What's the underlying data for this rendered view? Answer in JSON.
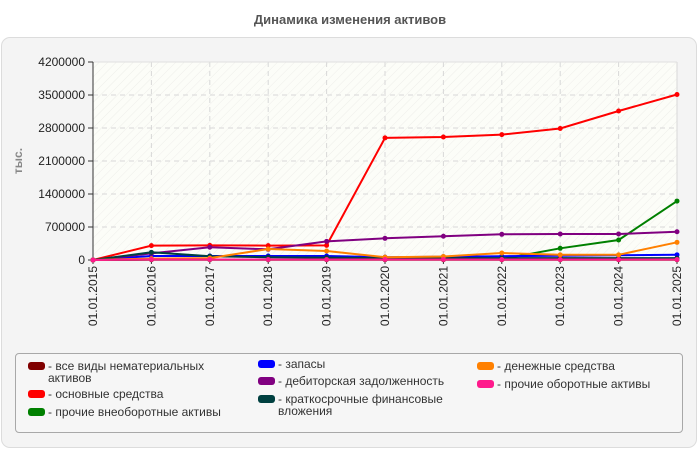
{
  "title": "Динамика изменения активов",
  "chart_data": {
    "type": "line",
    "title": "Динамика изменения активов",
    "xlabel": "",
    "ylabel": "тыс.",
    "ylim": [
      0,
      4200000
    ],
    "yticks": [
      0,
      700000,
      1400000,
      2100000,
      2800000,
      3500000,
      4200000
    ],
    "grid": true,
    "legend_position": "bottom",
    "categories": [
      "01.01.2015",
      "01.01.2016",
      "01.01.2017",
      "01.01.2018",
      "01.01.2019",
      "01.01.2020",
      "01.01.2021",
      "01.01.2022",
      "01.01.2023",
      "01.01.2024",
      "01.01.2025"
    ],
    "series": [
      {
        "name": "все виды нематериальных активов",
        "color": "#800000",
        "values": [
          0,
          5000,
          5000,
          5000,
          5000,
          5000,
          5000,
          5000,
          5000,
          5000,
          5000
        ]
      },
      {
        "name": "основные средства",
        "color": "#ff0000",
        "values": [
          0,
          305000,
          310000,
          305000,
          310000,
          2590000,
          2610000,
          2660000,
          2790000,
          3160000,
          3510000
        ]
      },
      {
        "name": "прочие внеоборотные активы",
        "color": "#008000",
        "values": [
          0,
          10000,
          10000,
          10000,
          10000,
          10000,
          10000,
          20000,
          248000,
          424000,
          1250000
        ]
      },
      {
        "name": "запасы",
        "color": "#0000ff",
        "values": [
          0,
          85000,
          85000,
          85000,
          85000,
          60000,
          70000,
          80000,
          90000,
          100000,
          110000
        ]
      },
      {
        "name": "дебиторская задолженность",
        "color": "#800080",
        "values": [
          0,
          140000,
          270000,
          227000,
          395000,
          460000,
          503000,
          545000,
          551000,
          551000,
          600000
        ]
      },
      {
        "name": "краткосрочные финансовые вложения",
        "color": "#004040",
        "values": [
          0,
          163000,
          80000,
          60000,
          50000,
          40000,
          40000,
          40000,
          40000,
          40000,
          40000
        ]
      },
      {
        "name": "денежные средства",
        "color": "#ff8000",
        "values": [
          0,
          30000,
          40000,
          233000,
          190000,
          60000,
          74000,
          148000,
          110000,
          110000,
          375000
        ]
      },
      {
        "name": "прочие оборотные активы",
        "color": "#ff1a8c",
        "values": [
          0,
          10000,
          10000,
          10000,
          10000,
          10000,
          10000,
          10000,
          10000,
          10000,
          10000
        ]
      }
    ]
  },
  "legend": [
    {
      "label": "- все виды нематериальных активов",
      "color": "#800000"
    },
    {
      "label": "- основные средства",
      "color": "#ff0000"
    },
    {
      "label": "- прочие внеоборотные активы",
      "color": "#008000"
    },
    {
      "label": "- запасы",
      "color": "#0000ff"
    },
    {
      "label": "- дебиторская задолженность",
      "color": "#800080"
    },
    {
      "label": "- краткосрочные финансовые вложения",
      "color": "#004040"
    },
    {
      "label": "- денежные средства",
      "color": "#ff8000"
    },
    {
      "label": "- прочие оборотные активы",
      "color": "#ff1a8c"
    }
  ]
}
